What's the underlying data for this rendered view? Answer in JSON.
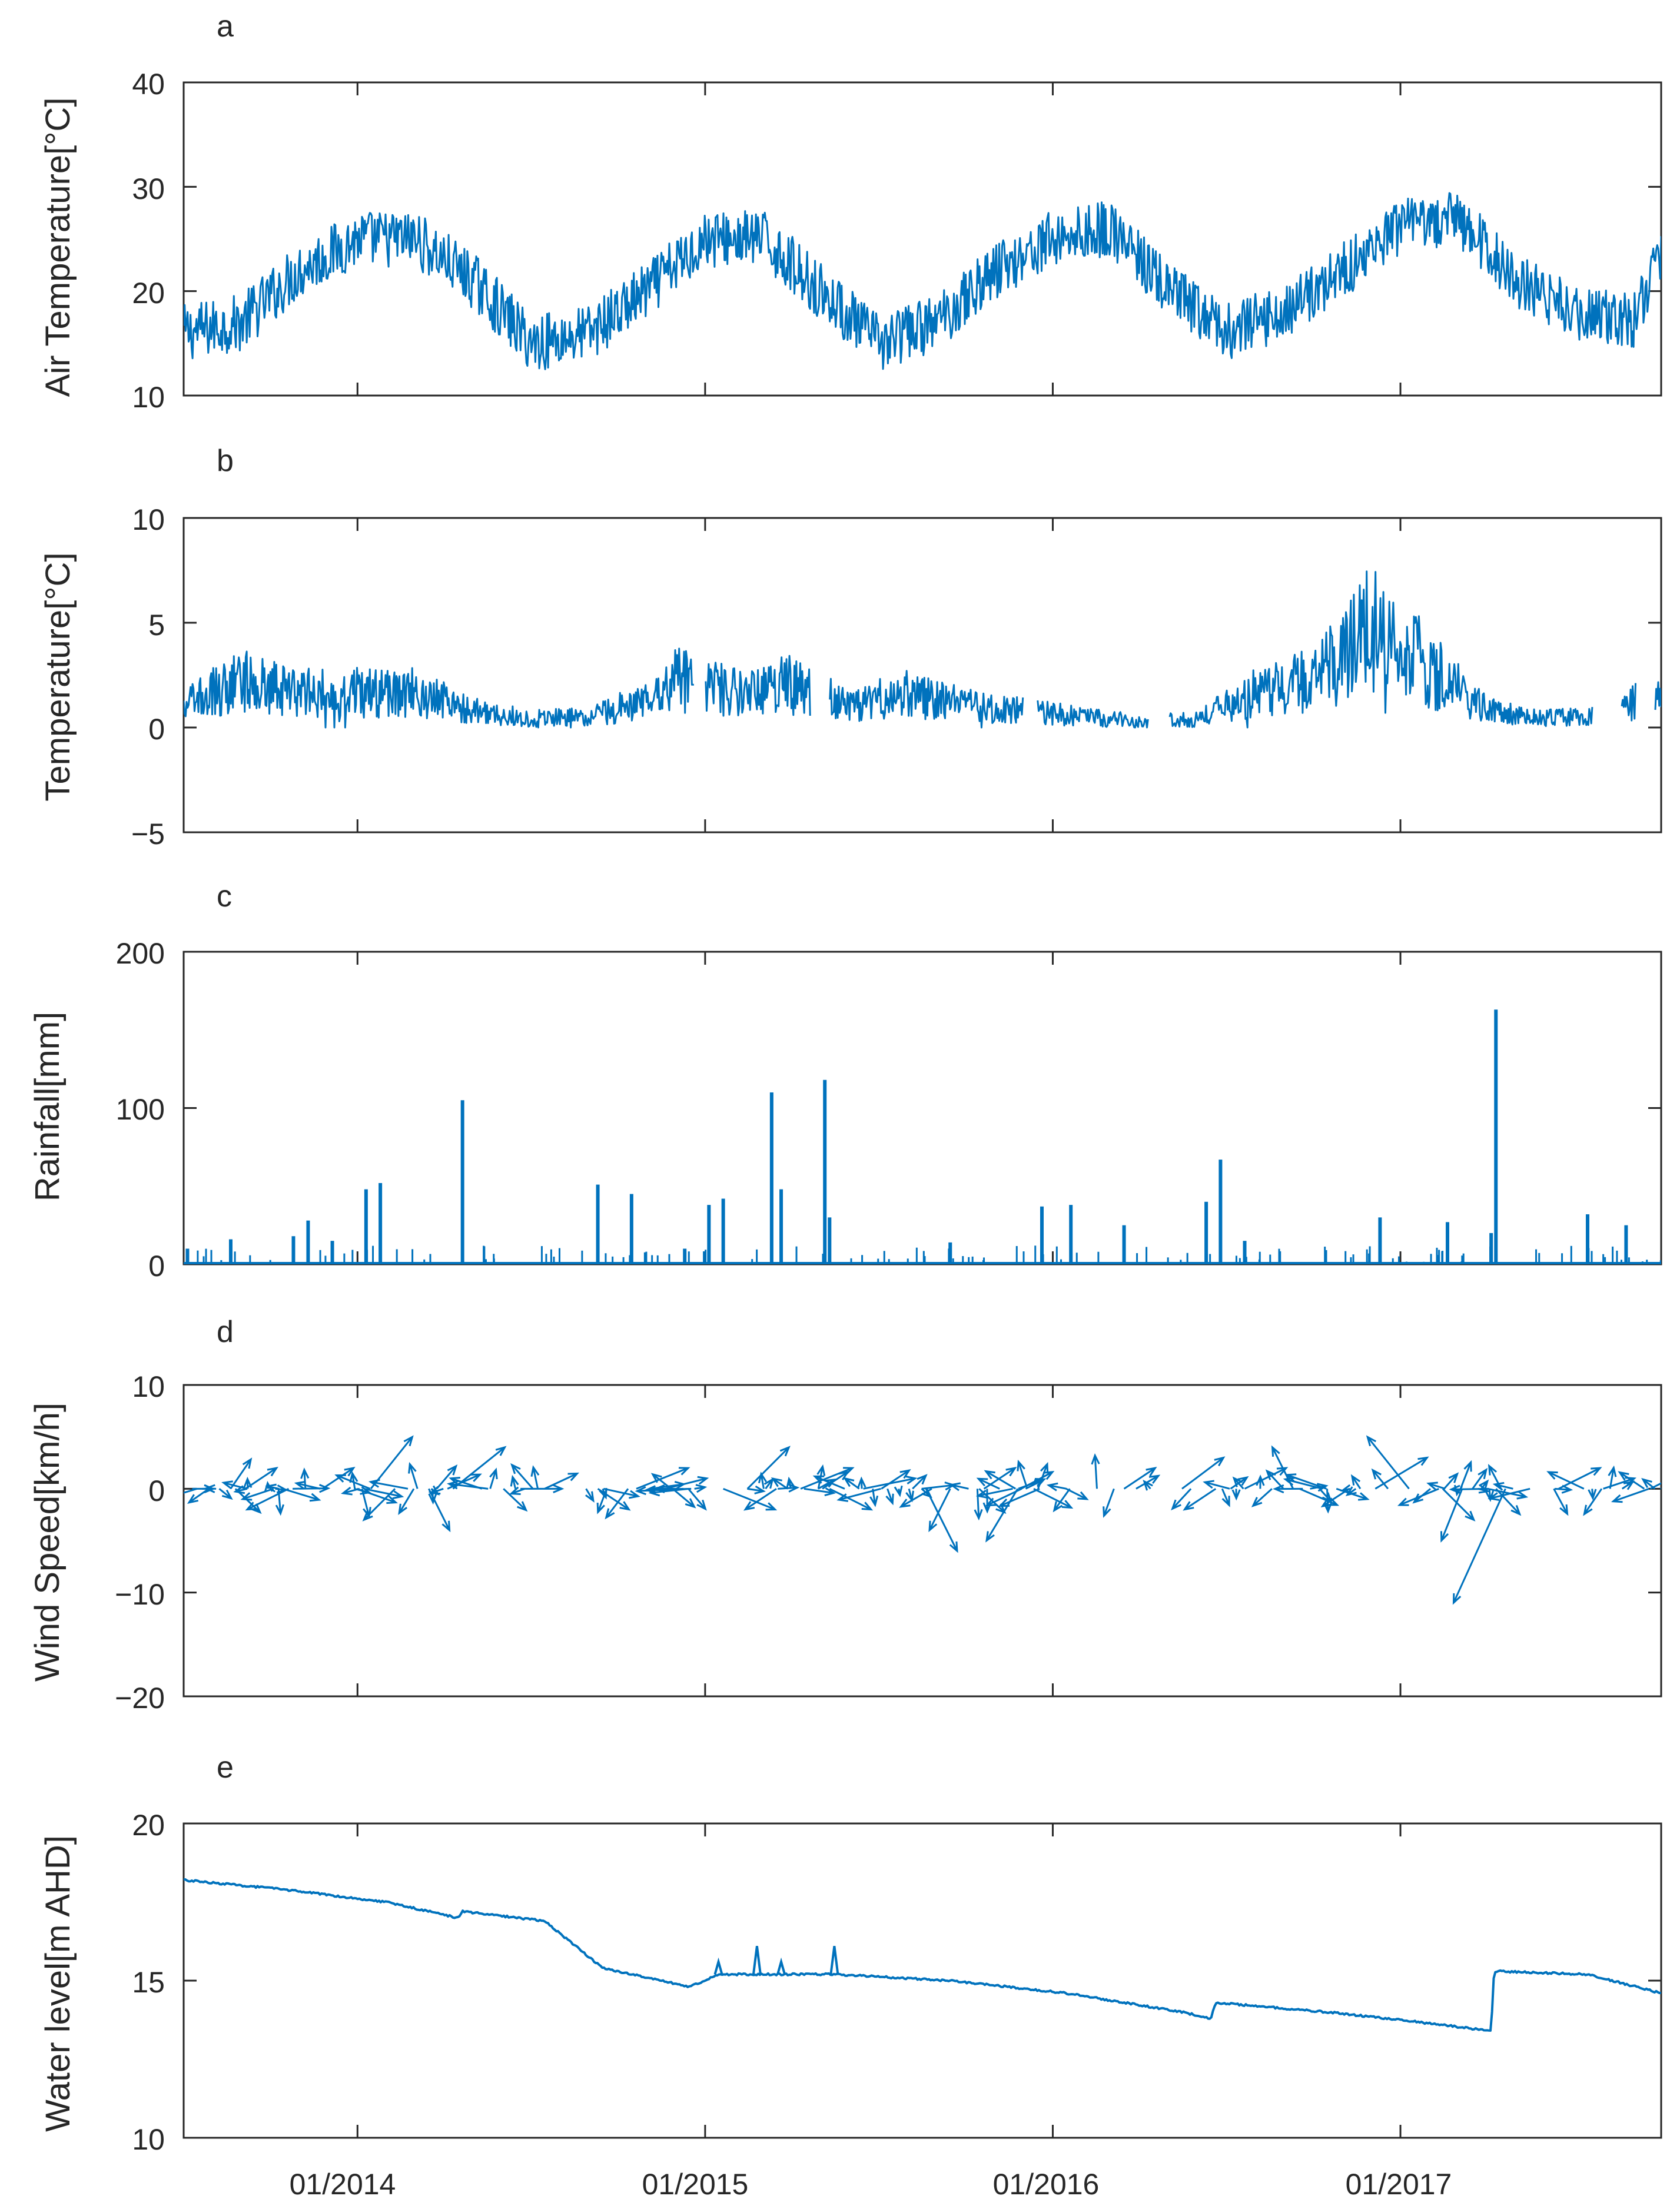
{
  "chart_data": [
    {
      "panel": "a",
      "type": "line",
      "ylabel": "Air Temperature[°C]",
      "ylim": [
        10,
        40
      ],
      "yticks": [
        "10",
        "20",
        "30",
        "40"
      ],
      "x_range": [
        "2013-07",
        "2017-10"
      ],
      "series_color": "#0072BD",
      "x": [
        "2013-07",
        "2013-09",
        "2013-11",
        "2014-01",
        "2014-03",
        "2014-05",
        "2014-07",
        "2014-09",
        "2014-11",
        "2015-01",
        "2015-03",
        "2015-05",
        "2015-07",
        "2015-09",
        "2015-11",
        "2016-01",
        "2016-03",
        "2016-05",
        "2016-07",
        "2016-09",
        "2016-11",
        "2017-01",
        "2017-03",
        "2017-05",
        "2017-07",
        "2017-09",
        "2017-10"
      ],
      "values": [
        16,
        17,
        22,
        25,
        25,
        21,
        15,
        16,
        20,
        25,
        25,
        20,
        15,
        17,
        22,
        25,
        26,
        20,
        16,
        18,
        22,
        26,
        27,
        21,
        18,
        17,
        24
      ]
    },
    {
      "panel": "b",
      "type": "line",
      "ylabel": "Temperature[°C]",
      "ylim": [
        -5,
        10
      ],
      "yticks": [
        "−5",
        "0",
        "5",
        "10"
      ],
      "x_range": [
        "2013-07",
        "2017-10"
      ],
      "series_color": "#0072BD",
      "x": [
        "2013-07",
        "2013-09",
        "2013-11",
        "2014-01",
        "2014-03",
        "2014-05",
        "2014-07",
        "2014-09",
        "2014-11",
        "2014-12",
        "2015-02",
        "2015-04",
        "2015-06",
        "2015-08",
        "2015-10",
        "2015-12",
        "2016-02",
        "2016-04",
        "2016-06",
        "2016-08",
        "2016-10",
        "2016-12",
        "2017-02",
        "2017-04",
        "2017-06",
        "2017-08",
        "2017-10"
      ],
      "values": [
        1,
        2,
        1.5,
        1.5,
        1.5,
        0.8,
        0.5,
        0.6,
        1.2,
        2,
        1.5,
        1.8,
        1,
        1.5,
        1,
        0.8,
        0.6,
        0.4,
        0.5,
        1.5,
        2,
        4,
        2.5,
        0.8,
        0.5,
        0.8,
        1.5
      ],
      "gaps": [
        [
          "2014-12-20",
          "2015-01-01"
        ],
        [
          "2015-04-20",
          "2015-05-10"
        ],
        [
          "2015-12-01",
          "2015-12-15"
        ],
        [
          "2016-04-10",
          "2016-05-01"
        ],
        [
          "2017-07-20",
          "2017-08-20"
        ],
        [
          "2017-09-05",
          "2017-09-25"
        ]
      ]
    },
    {
      "panel": "c",
      "type": "bar",
      "ylabel": "Rainfall[mm]",
      "ylim": [
        0,
        200
      ],
      "yticks": [
        "0",
        "100",
        "200"
      ],
      "x_range": [
        "2013-07",
        "2017-10"
      ],
      "series_color": "#0072BD",
      "x": [
        "2013-07-05",
        "2013-08-20",
        "2013-10-25",
        "2013-11-10",
        "2013-12-05",
        "2014-01-10",
        "2014-01-25",
        "2014-04-20",
        "2014-09-10",
        "2014-10-15",
        "2014-12-10",
        "2015-01-05",
        "2015-01-20",
        "2015-03-10",
        "2015-03-20",
        "2015-05-05",
        "2015-05-10",
        "2015-09-15",
        "2015-12-20",
        "2016-01-20",
        "2016-03-15",
        "2016-06-10",
        "2016-06-25",
        "2016-07-20",
        "2016-12-10",
        "2017-02-20",
        "2017-04-05",
        "2017-04-10",
        "2017-07-15",
        "2017-08-25"
      ],
      "values": [
        10,
        16,
        18,
        28,
        15,
        48,
        52,
        105,
        51,
        45,
        10,
        38,
        42,
        110,
        48,
        118,
        30,
        14,
        37,
        38,
        25,
        40,
        67,
        15,
        30,
        27,
        20,
        163,
        32,
        25
      ]
    },
    {
      "panel": "d",
      "type": "line",
      "subtype": "quiver",
      "ylabel": "Wind Speed[km/h]",
      "ylim": [
        -20,
        10
      ],
      "yticks": [
        "−20",
        "−10",
        "0",
        "10"
      ],
      "x_range": [
        "2013-07",
        "2017-10"
      ],
      "series_color": "#0072BD",
      "x": [
        "2013-07-10",
        "2013-09-05",
        "2013-10-20",
        "2013-11-25",
        "2014-01-15",
        "2014-02-10",
        "2014-03-15",
        "2014-04-10",
        "2014-05-10",
        "2014-06-20",
        "2014-09-10",
        "2014-10-20",
        "2014-11-20",
        "2015-01-20",
        "2015-02-15",
        "2015-03-15",
        "2015-04-10",
        "2015-05-10",
        "2015-06-15",
        "2015-08-20",
        "2015-09-15",
        "2015-10-20",
        "2015-11-25",
        "2016-01-15",
        "2016-03-15",
        "2016-05-15",
        "2016-06-20",
        "2016-07-20",
        "2016-09-10",
        "2016-10-25",
        "2016-12-05",
        "2017-01-10",
        "2017-02-15",
        "2017-03-05",
        "2017-04-20",
        "2017-06-15",
        "2017-08-01",
        "2017-09-20"
      ],
      "u": [
        2,
        3,
        -4,
        3,
        4,
        -3,
        2,
        5,
        -3,
        4,
        3,
        5,
        4,
        5,
        4,
        -3,
        5,
        4,
        5,
        3,
        -2,
        3,
        -3,
        2,
        3,
        4,
        -3,
        4,
        -2,
        3,
        5,
        -4,
        3,
        -2,
        -5,
        4,
        3,
        2
      ],
      "v": [
        0,
        2,
        -2,
        2,
        5,
        -3,
        -4,
        4,
        1,
        0,
        -2,
        2,
        1,
        -2,
        4,
        -2,
        2,
        -2,
        1,
        -6,
        -4,
        2,
        -5,
        -1,
        2,
        3,
        -2,
        2,
        4,
        -1,
        3,
        5,
        -3,
        -5,
        -11,
        2,
        1,
        1
      ]
    },
    {
      "panel": "e",
      "type": "line",
      "ylabel": "Water level[m AHD]",
      "ylim": [
        10,
        20
      ],
      "yticks": [
        "10",
        "15",
        "20"
      ],
      "xticks": [
        "01/2014",
        "01/2015",
        "01/2016",
        "01/2017"
      ],
      "x_range": [
        "2013-07",
        "2017-10"
      ],
      "series_color": "#0072BD",
      "x": [
        "2013-07-01",
        "2013-10-15",
        "2014-02-01",
        "2014-04-15",
        "2014-04-20",
        "2014-07-15",
        "2014-09-15",
        "2014-12-15",
        "2015-01-15",
        "2015-05-15",
        "2015-09-15",
        "2016-01-15",
        "2016-05-15",
        "2016-06-15",
        "2016-06-20",
        "2016-10-15",
        "2017-01-15",
        "2017-04-05",
        "2017-04-08",
        "2017-07-15",
        "2017-10-01"
      ],
      "values": [
        18.2,
        17.9,
        17.5,
        17.0,
        17.2,
        16.9,
        15.4,
        14.8,
        15.2,
        15.2,
        15.0,
        14.6,
        14.0,
        13.8,
        14.3,
        14.0,
        13.7,
        13.4,
        15.3,
        15.2,
        14.6
      ],
      "spikes": [
        {
          "x": "2015-01-15",
          "value": 15.6
        },
        {
          "x": "2015-02-25",
          "value": 16.1
        },
        {
          "x": "2015-03-20",
          "value": 15.6
        },
        {
          "x": "2015-05-15",
          "value": 16.1
        }
      ]
    }
  ]
}
